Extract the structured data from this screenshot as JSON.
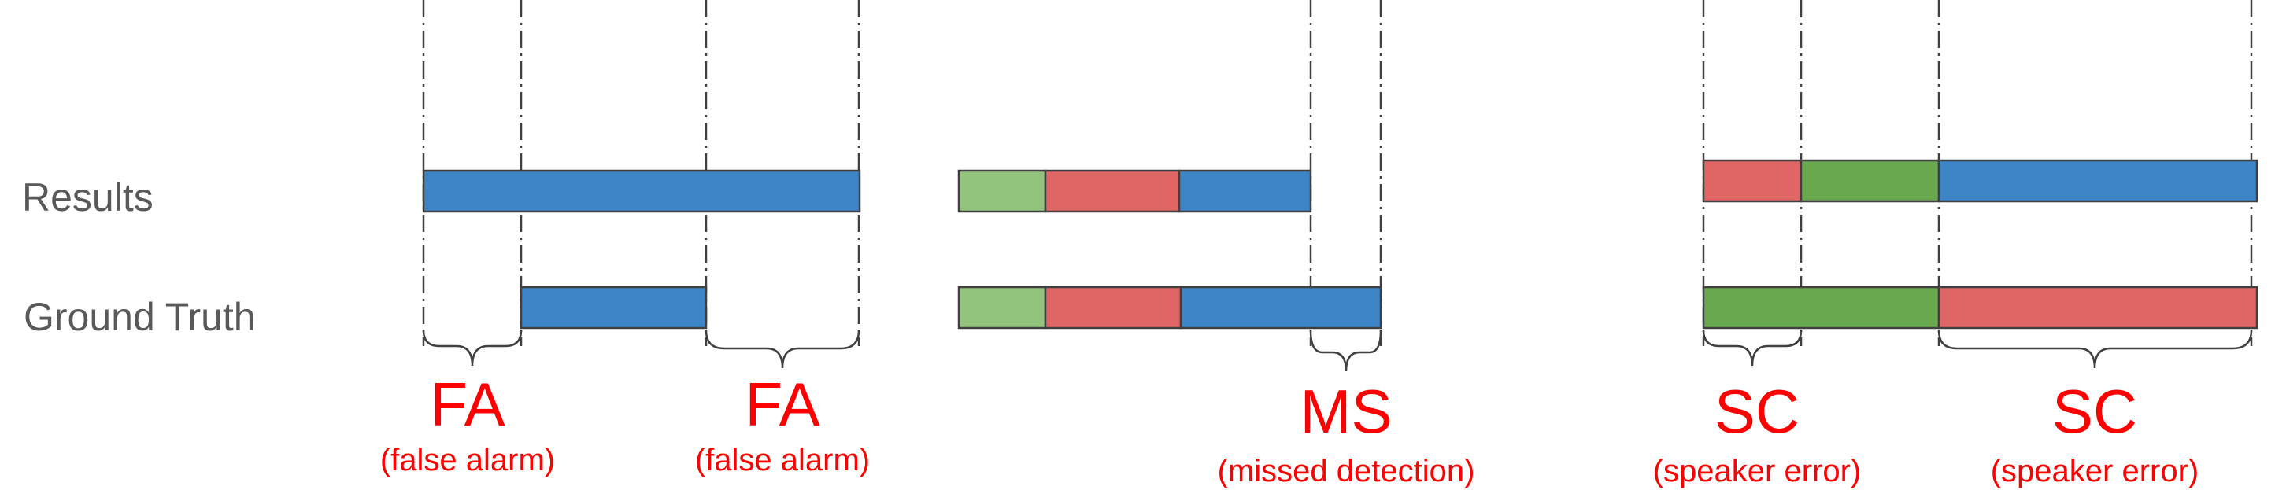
{
  "rows": {
    "results_label": "Results",
    "ground_truth_label": "Ground Truth"
  },
  "colors": {
    "light_green": "#93c47d",
    "dark_green": "#6aa84f",
    "red": "#e06666",
    "blue": "#3d85c6"
  },
  "annotations": [
    {
      "code": "FA",
      "desc": "(false alarm)"
    },
    {
      "code": "FA",
      "desc": "(false alarm)"
    },
    {
      "code": "MS",
      "desc": "(missed detection)"
    },
    {
      "code": "SC",
      "desc": "(speaker error)"
    },
    {
      "code": "SC",
      "desc": "(speaker error)"
    }
  ]
}
